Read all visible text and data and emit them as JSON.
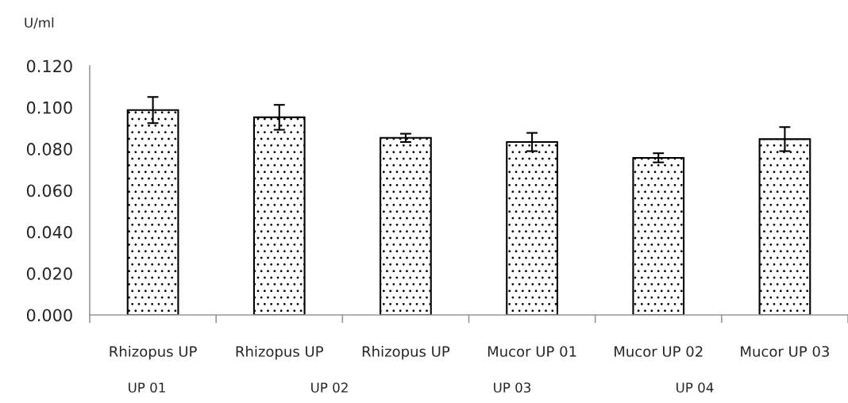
{
  "chart_data": {
    "type": "bar",
    "ylabel": "U/ml",
    "categories": [
      "Rhizopus UP",
      "Rhizopus UP",
      "Rhizopus UP",
      "Mucor UP 01",
      "Mucor UP 02",
      "Mucor UP 03"
    ],
    "values": [
      0.0987,
      0.0952,
      0.0853,
      0.0833,
      0.0757,
      0.0847
    ],
    "errors": [
      0.0063,
      0.006,
      0.002,
      0.0044,
      0.0022,
      0.0058
    ],
    "color": "#000000",
    "ylim": [
      0,
      0.12
    ],
    "yticks": [
      {
        "value": 0,
        "label": "0.000"
      },
      {
        "value": 0.02,
        "label": "0.020"
      },
      {
        "value": 0.04,
        "label": "0.040"
      },
      {
        "value": 0.06,
        "label": "0.060"
      },
      {
        "value": 0.08,
        "label": "0.080"
      },
      {
        "value": 0.1,
        "label": "0.100"
      },
      {
        "value": 0.12,
        "label": "0.120"
      }
    ],
    "grid": false,
    "legend": false,
    "annotations": [
      "UP 01",
      "UP 02",
      "UP 03",
      "UP 04"
    ]
  }
}
